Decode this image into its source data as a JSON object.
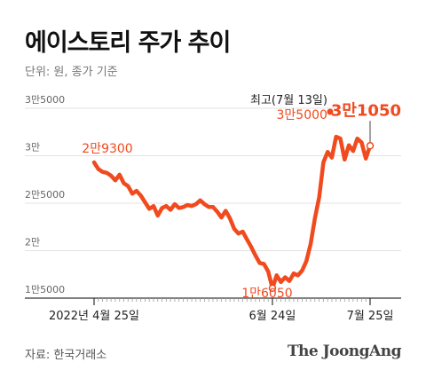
{
  "header": {
    "title": "에이스토리 주가 추이",
    "subtitle": "단위: 원, 종가 기준"
  },
  "footer": {
    "source": "자료: 한국거래소",
    "brand": "The JoongAng"
  },
  "colors": {
    "line": "#f04a1e",
    "grid": "#e3e3e3",
    "axis": "#333333",
    "annotation": "#f04a1e"
  },
  "chart_data": {
    "type": "line",
    "title": "에이스토리 주가 추이",
    "ylim": [
      15000,
      35000
    ],
    "grid": true,
    "y_ticks": [
      {
        "value": 35000,
        "label": "3만5000"
      },
      {
        "value": 30000,
        "label": "3만"
      },
      {
        "value": 25000,
        "label": "2만5000"
      },
      {
        "value": 20000,
        "label": "2만"
      },
      {
        "value": 15000,
        "label": "1만5000"
      }
    ],
    "x_ticks": [
      {
        "index": 0,
        "label": "2022년 4월 25일"
      },
      {
        "index": 42,
        "label": "6월 24일"
      },
      {
        "index": 65,
        "label": "7월 25일"
      }
    ],
    "x_count": 66,
    "series": [
      {
        "values": [
          29300,
          28600,
          28300,
          28200,
          27900,
          27400,
          28000,
          27100,
          26800,
          26000,
          26300,
          25800,
          25100,
          24400,
          24700,
          23700,
          24500,
          24700,
          24300,
          24900,
          24500,
          24600,
          24800,
          24700,
          24900,
          25300,
          24900,
          24600,
          24600,
          24100,
          23500,
          24200,
          23400,
          22300,
          21800,
          22000,
          21200,
          20400,
          19500,
          18700,
          18600,
          17800,
          16050,
          17400,
          16700,
          17200,
          16800,
          17600,
          17400,
          17900,
          18900,
          20700,
          23400,
          25600,
          29300,
          30400,
          29800,
          32000,
          31800,
          29600,
          31100,
          30500,
          31800,
          31400,
          29700,
          31050
        ]
      }
    ],
    "annotations": [
      {
        "label": "2만9300",
        "index": 0,
        "value": 29300
      },
      {
        "label": "1만6050",
        "index": 42,
        "value": 16050
      },
      {
        "label": "최고(7월 13일)",
        "sub_label": "3만5000",
        "index": 56,
        "value": 35000
      },
      {
        "label": "3만1050",
        "index": 65,
        "value": 31050
      }
    ]
  }
}
